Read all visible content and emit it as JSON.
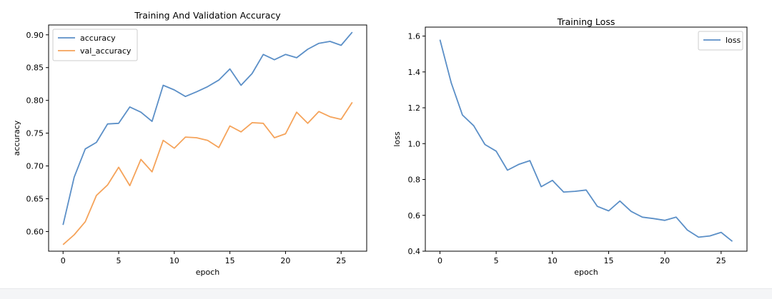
{
  "colors": {
    "blue": "#5b8fc7",
    "orange": "#f5a35a",
    "axis": "#000000"
  },
  "chart_data": [
    {
      "type": "line",
      "title": "Training And Validation Accuracy",
      "xlabel": "epoch",
      "ylabel": "accuracy",
      "xlim": [
        -1.3,
        27.3
      ],
      "ylim": [
        0.57,
        0.915
      ],
      "xticks": [
        0,
        5,
        10,
        15,
        20,
        25
      ],
      "yticks": [
        0.6,
        0.65,
        0.7,
        0.75,
        0.8,
        0.85,
        0.9
      ],
      "ytick_decimals": 2,
      "legend": "upper-left",
      "grid": false,
      "x": [
        0,
        1,
        2,
        3,
        4,
        5,
        6,
        7,
        8,
        9,
        10,
        11,
        12,
        13,
        14,
        15,
        16,
        17,
        18,
        19,
        20,
        21,
        22,
        23,
        24,
        25,
        26
      ],
      "series": [
        {
          "name": "accuracy",
          "color": "#5b8fc7",
          "values": [
            0.61,
            0.683,
            0.726,
            0.736,
            0.764,
            0.765,
            0.79,
            0.782,
            0.768,
            0.823,
            0.816,
            0.806,
            0.813,
            0.821,
            0.831,
            0.848,
            0.823,
            0.841,
            0.87,
            0.862,
            0.87,
            0.865,
            0.878,
            0.887,
            0.89,
            0.884,
            0.904
          ]
        },
        {
          "name": "val_accuracy",
          "color": "#f5a35a",
          "values": [
            0.58,
            0.595,
            0.615,
            0.655,
            0.671,
            0.698,
            0.67,
            0.71,
            0.691,
            0.739,
            0.727,
            0.744,
            0.743,
            0.739,
            0.728,
            0.761,
            0.752,
            0.766,
            0.765,
            0.743,
            0.749,
            0.782,
            0.765,
            0.783,
            0.775,
            0.771,
            0.797
          ]
        }
      ]
    },
    {
      "type": "line",
      "title": "Training Loss",
      "xlabel": "epoch",
      "ylabel": "loss",
      "xlim": [
        -1.3,
        27.3
      ],
      "ylim": [
        0.4,
        1.65
      ],
      "xticks": [
        0,
        5,
        10,
        15,
        20,
        25
      ],
      "yticks": [
        0.4,
        0.6,
        0.8,
        1.0,
        1.2,
        1.4,
        1.6
      ],
      "ytick_decimals": 1,
      "legend": "upper-right",
      "grid": false,
      "x": [
        0,
        1,
        2,
        3,
        4,
        5,
        6,
        7,
        8,
        9,
        10,
        11,
        12,
        13,
        14,
        15,
        16,
        17,
        18,
        19,
        20,
        21,
        22,
        23,
        24,
        25,
        26
      ],
      "series": [
        {
          "name": "loss",
          "color": "#5b8fc7",
          "values": [
            1.58,
            1.34,
            1.16,
            1.1,
            0.995,
            0.958,
            0.852,
            0.884,
            0.905,
            0.76,
            0.795,
            0.73,
            0.734,
            0.741,
            0.65,
            0.625,
            0.68,
            0.622,
            0.59,
            0.582,
            0.572,
            0.59,
            0.518,
            0.478,
            0.485,
            0.505,
            0.455
          ]
        }
      ]
    }
  ]
}
